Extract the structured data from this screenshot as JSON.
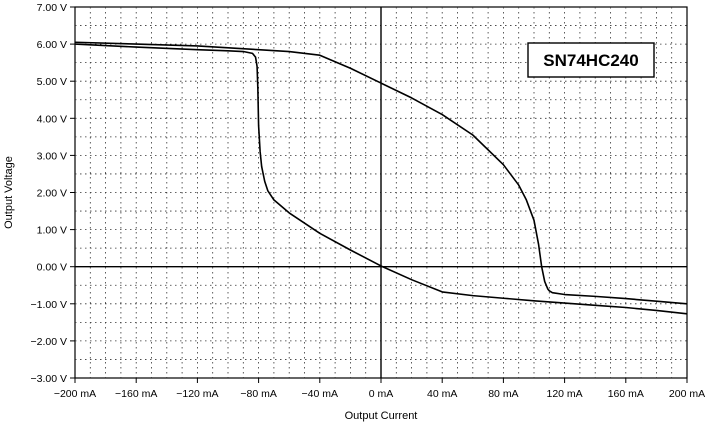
{
  "chart_data": {
    "type": "line",
    "title": "",
    "xlabel": "Output Current",
    "ylabel": "Output Voltage",
    "annotation": "SN74HC240",
    "xlim": [
      -200,
      200
    ],
    "ylim": [
      -3,
      7
    ],
    "x_ticks": [
      {
        "value": -200,
        "label": "−200 mA"
      },
      {
        "value": -160,
        "label": "−160 mA"
      },
      {
        "value": -120,
        "label": "−120 mA"
      },
      {
        "value": -80,
        "label": "−80 mA"
      },
      {
        "value": -40,
        "label": "−40 mA"
      },
      {
        "value": 0,
        "label": "0 mA"
      },
      {
        "value": 40,
        "label": "40 mA"
      },
      {
        "value": 80,
        "label": "80 mA"
      },
      {
        "value": 120,
        "label": "120 mA"
      },
      {
        "value": 160,
        "label": "160 mA"
      },
      {
        "value": 200,
        "label": "200 mA"
      }
    ],
    "y_ticks": [
      {
        "value": 7,
        "label": "7.00 V"
      },
      {
        "value": 6,
        "label": "6.00 V"
      },
      {
        "value": 5,
        "label": "5.00 V"
      },
      {
        "value": 4,
        "label": "4.00 V"
      },
      {
        "value": 3,
        "label": "3.00 V"
      },
      {
        "value": 2,
        "label": "2.00 V"
      },
      {
        "value": 1,
        "label": "1.00 V"
      },
      {
        "value": 0,
        "label": "0.00 V"
      },
      {
        "value": -1,
        "label": "−1.00 V"
      },
      {
        "value": -2,
        "label": "−2.00 V"
      },
      {
        "value": -3,
        "label": "−3.00 V"
      }
    ],
    "grid": true,
    "series": [
      {
        "x": [
          -200,
          -160,
          -120,
          -100,
          -90,
          -84,
          -82,
          -81,
          -80.5,
          -80,
          -79,
          -78,
          -76,
          -74,
          -70,
          -60,
          -40,
          -20,
          0,
          20,
          40,
          60,
          80,
          100,
          120,
          140,
          160,
          180,
          200
        ],
        "y": [
          6.0,
          5.92,
          5.85,
          5.82,
          5.8,
          5.75,
          5.65,
          5.4,
          4.8,
          3.8,
          3.1,
          2.7,
          2.3,
          2.05,
          1.8,
          1.45,
          0.9,
          0.45,
          0.02,
          -0.35,
          -0.68,
          -0.78,
          -0.85,
          -0.92,
          -0.98,
          -1.04,
          -1.1,
          -1.18,
          -1.27
        ]
      },
      {
        "x": [
          -200,
          -160,
          -120,
          -80,
          -60,
          -40,
          -20,
          0,
          20,
          40,
          60,
          80,
          90,
          95,
          100,
          103,
          105,
          107,
          109,
          110,
          112,
          120,
          140,
          160,
          180,
          200
        ],
        "y": [
          6.05,
          6.0,
          5.95,
          5.85,
          5.8,
          5.7,
          5.35,
          4.95,
          4.55,
          4.1,
          3.55,
          2.75,
          2.2,
          1.8,
          1.25,
          0.6,
          0.0,
          -0.4,
          -0.6,
          -0.65,
          -0.7,
          -0.75,
          -0.8,
          -0.86,
          -0.93,
          -1.0
        ]
      }
    ]
  }
}
